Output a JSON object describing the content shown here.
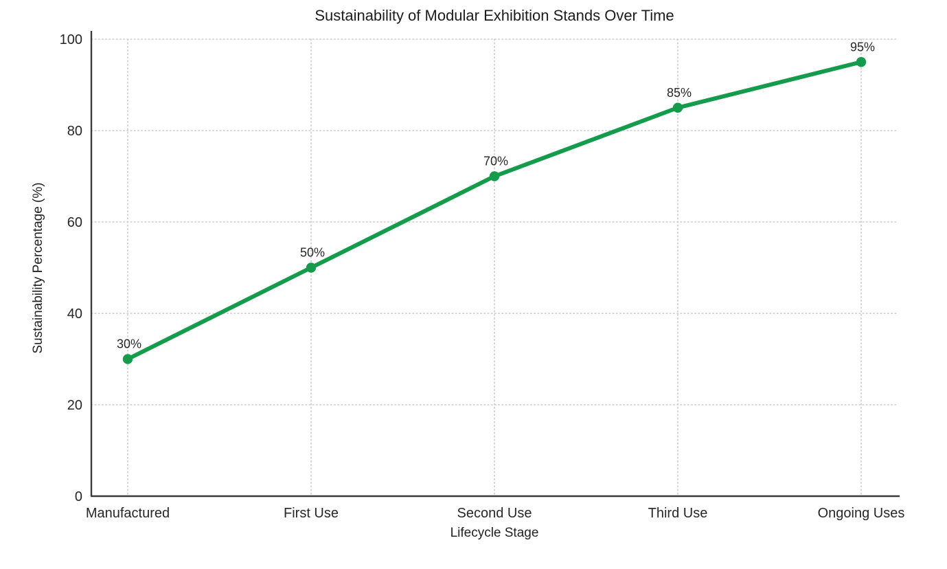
{
  "chart_data": {
    "type": "line",
    "title": "Sustainability of Modular Exhibition Stands Over Time",
    "xlabel": "Lifecycle Stage",
    "ylabel": "Sustainability Percentage (%)",
    "categories": [
      "Manufactured",
      "First Use",
      "Second Use",
      "Third Use",
      "Ongoing Uses"
    ],
    "values": [
      30,
      50,
      70,
      85,
      95
    ],
    "point_labels": [
      "30%",
      "50%",
      "70%",
      "85%",
      "95%"
    ],
    "y_ticks": [
      0,
      20,
      40,
      60,
      80,
      100
    ],
    "ylim": [
      0,
      100
    ],
    "grid": "dotted-horizontal-and-vertical",
    "legend": "none",
    "colors": {
      "line": "#149b4b",
      "grid": "#cbcbcb",
      "axis": "#3a3a3a",
      "text": "#262626",
      "background": "#ffffff"
    }
  }
}
